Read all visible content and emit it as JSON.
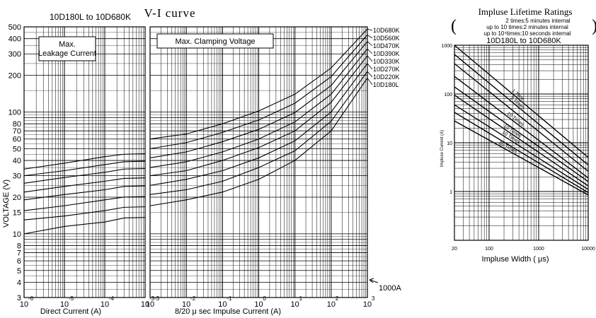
{
  "chart_data": [
    {
      "type": "line",
      "title": "V-I curve",
      "subtitle": "10D180L to 10D680K",
      "ylabel": "VOLTAGE (V)",
      "y_scale": "log",
      "ylim": [
        3,
        500
      ],
      "y_ticks": [
        3,
        4,
        5,
        6,
        7,
        8,
        10,
        15,
        20,
        30,
        40,
        50,
        60,
        70,
        80,
        100,
        200,
        300,
        400,
        500
      ],
      "grid": true,
      "panels": [
        {
          "name": "leakage",
          "annotation": "Max.\nLeakage Current",
          "xlabel": "Direct Current  (A)",
          "x_scale": "log",
          "xlim": [
            1e-06,
            0.001
          ],
          "x_tick_exponents": [
            "-6",
            "-5",
            "-4",
            "-3"
          ],
          "x_tick_base": "10"
        },
        {
          "name": "clamping",
          "annotation": "Max. Clamping Voltage",
          "xlabel": "8/20 μ sec Impulse Current (A)",
          "x_scale": "log",
          "xlim": [
            0.001,
            1000.0
          ],
          "x_tick_exponents": [
            "-3",
            "-2",
            "-1",
            "0",
            "1",
            "2",
            "3"
          ],
          "x_tick_base": "10"
        }
      ],
      "right_annotation": "1000A",
      "series": [
        {
          "name": "10D680K",
          "leak_x": [
            1e-06,
            1e-05,
            0.0001,
            0.0003
          ],
          "leak_y": [
            34,
            38,
            43,
            45
          ],
          "clamp_x": [
            0.001,
            0.01,
            0.1,
            1,
            10,
            100,
            1000
          ],
          "clamp_y": [
            60,
            66,
            80,
            102,
            140,
            230,
            480
          ]
        },
        {
          "name": "10D560K",
          "leak_x": [
            1e-06,
            1e-05,
            0.0001,
            0.0003
          ],
          "leak_y": [
            30,
            33,
            37,
            39
          ],
          "clamp_x": [
            0.001,
            0.01,
            0.1,
            1,
            10,
            100,
            1000
          ],
          "clamp_y": [
            50,
            56,
            68,
            86,
            118,
            195,
            430
          ]
        },
        {
          "name": "10D470K",
          "leak_x": [
            1e-06,
            1e-05,
            0.0001,
            0.0003
          ],
          "leak_y": [
            26,
            29,
            32,
            34
          ],
          "clamp_x": [
            0.001,
            0.01,
            0.1,
            1,
            10,
            100,
            1000
          ],
          "clamp_y": [
            42,
            47,
            57,
            72,
            99,
            165,
            380
          ]
        },
        {
          "name": "10D390K",
          "leak_x": [
            1e-06,
            1e-05,
            0.0001,
            0.0003
          ],
          "leak_y": [
            22,
            24.5,
            27,
            28.5
          ],
          "clamp_x": [
            0.001,
            0.01,
            0.1,
            1,
            10,
            100,
            1000
          ],
          "clamp_y": [
            35,
            39,
            47,
            60,
            83,
            140,
            330
          ]
        },
        {
          "name": "10D330K",
          "leak_x": [
            1e-06,
            1e-05,
            0.0001,
            0.0003
          ],
          "leak_y": [
            19,
            21,
            23,
            24.5
          ],
          "clamp_x": [
            0.001,
            0.01,
            0.1,
            1,
            10,
            100,
            1000
          ],
          "clamp_y": [
            30,
            33,
            40,
            51,
            70,
            120,
            290
          ]
        },
        {
          "name": "10D270K",
          "leak_x": [
            1e-06,
            1e-05,
            0.0001,
            0.0003
          ],
          "leak_y": [
            15.5,
            17,
            19,
            20
          ],
          "clamp_x": [
            0.001,
            0.01,
            0.1,
            1,
            10,
            100,
            1000
          ],
          "clamp_y": [
            25,
            28,
            33,
            42,
            58,
            100,
            250
          ]
        },
        {
          "name": "10D220K",
          "leak_x": [
            1e-06,
            1e-05,
            0.0001,
            0.0003
          ],
          "leak_y": [
            13,
            14,
            15.5,
            16.5
          ],
          "clamp_x": [
            0.001,
            0.01,
            0.1,
            1,
            10,
            100,
            1000
          ],
          "clamp_y": [
            21,
            23,
            27,
            35,
            48,
            84,
            215
          ]
        },
        {
          "name": "10D180L",
          "leak_x": [
            1e-06,
            1e-05,
            0.0001,
            0.0003
          ],
          "leak_y": [
            10,
            11.5,
            12.5,
            13.5
          ],
          "clamp_x": [
            0.001,
            0.01,
            0.1,
            1,
            10,
            100,
            1000
          ],
          "clamp_y": [
            17,
            19,
            22,
            28,
            40,
            70,
            190
          ]
        }
      ]
    },
    {
      "type": "line",
      "title": "Impluse Lifetime Ratings",
      "notes": [
        "2 times:5 minutes internal",
        "up to 10 times:2 minutes internal",
        "up to 10⁴times:10 seconds internal"
      ],
      "subtitle": "10D180L to 10D680K",
      "xlabel": "Impluse Width ( μs)",
      "ylabel": "Impluse Current (A)",
      "x_scale": "log",
      "y_scale": "log",
      "xlim": [
        20,
        10000
      ],
      "ylim": [
        0.1,
        1000
      ],
      "x_ticks": [
        20,
        100,
        1000,
        10000
      ],
      "x_tick_labels": [
        "20",
        "100",
        "1000",
        "10000"
      ],
      "y_ticks": [
        1,
        10,
        100,
        1000
      ],
      "y_tick_labels": [
        "1",
        "10",
        "100",
        "1000"
      ],
      "grid": true,
      "series": [
        {
          "name": "1 Time",
          "x": [
            20,
            10000
          ],
          "y": [
            1000,
            5
          ]
        },
        {
          "name": "2 Times",
          "x": [
            20,
            10000
          ],
          "y": [
            650,
            3.5
          ]
        },
        {
          "name": "",
          "x": [
            20,
            10000
          ],
          "y": [
            420,
            2.6
          ]
        },
        {
          "name": "10 Times",
          "x": [
            20,
            10000
          ],
          "y": [
            230,
            1.9
          ]
        },
        {
          "name": "",
          "x": [
            20,
            10000
          ],
          "y": [
            140,
            1.6
          ]
        },
        {
          "name": "10 Times",
          "x": [
            20,
            10000
          ],
          "y": [
            95,
            1.3
          ]
        },
        {
          "name": "10 Times",
          "x": [
            20,
            10000
          ],
          "y": [
            60,
            1.1
          ]
        },
        {
          "name": "",
          "x": [
            20,
            10000
          ],
          "y": [
            42,
            0.95
          ]
        },
        {
          "name": "10 Times",
          "x": [
            20,
            10000
          ],
          "y": [
            28,
            0.85
          ]
        }
      ]
    }
  ]
}
